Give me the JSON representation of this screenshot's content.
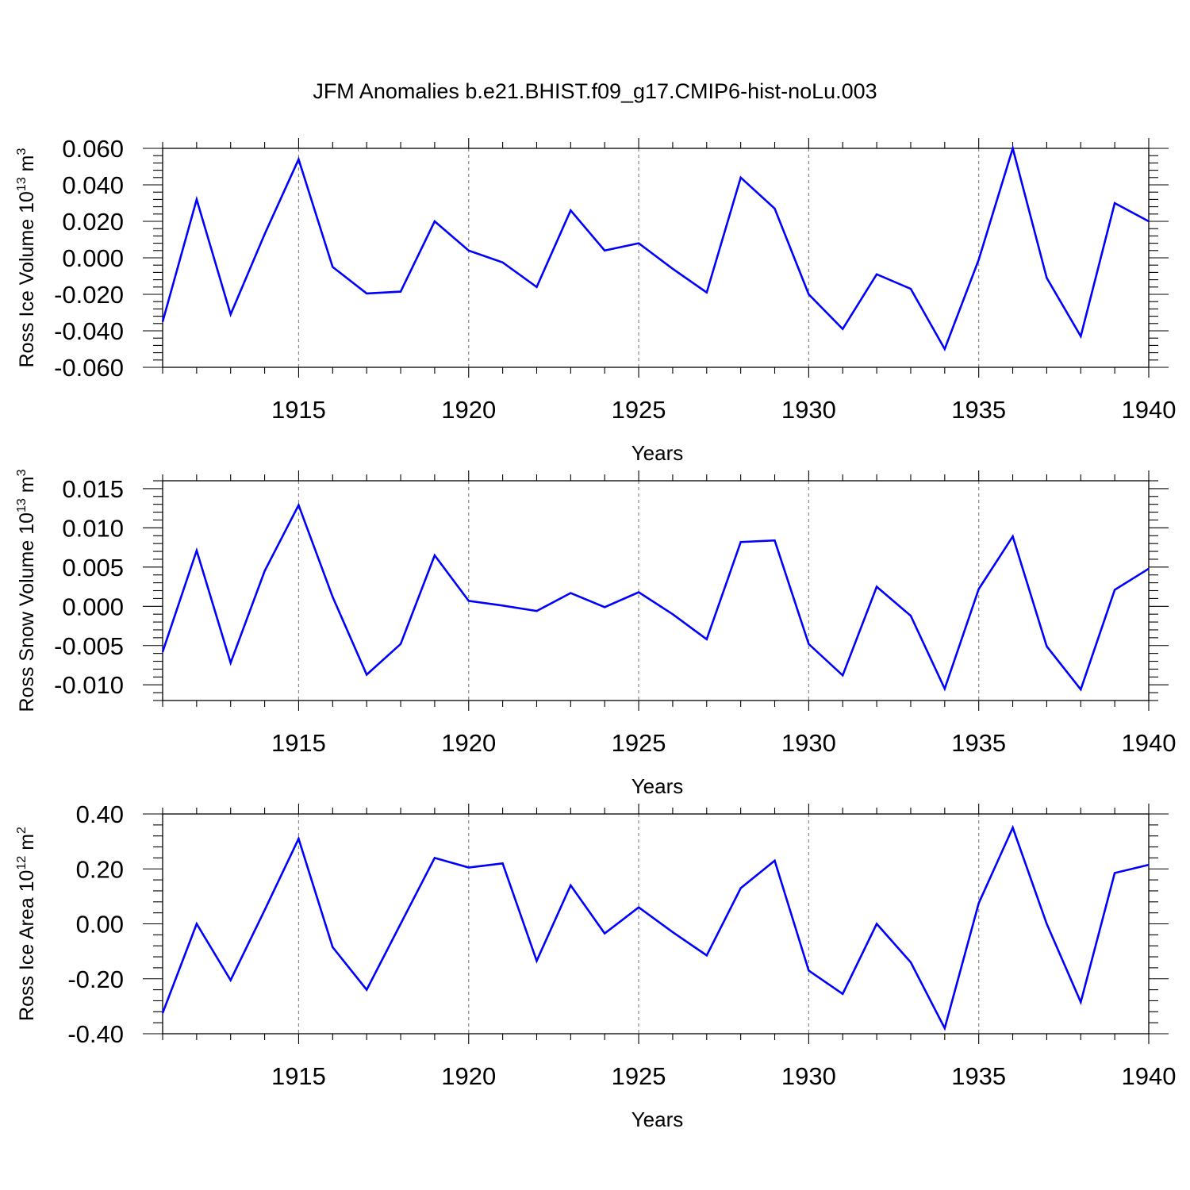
{
  "title": "JFM Anomalies b.e21.BHIST.f09_g17.CMIP6-hist-noLu.003",
  "line_color": "#0000ff",
  "chart_data": [
    {
      "type": "line",
      "ylabel": {
        "main": "Ross Ice Volume 10",
        "exp": "13",
        "unit": " m",
        "unit_exp": "3"
      },
      "xlabel": "Years",
      "xlim": [
        1911,
        1940
      ],
      "ylim": [
        -0.06,
        0.06
      ],
      "xticks": [
        "1915",
        "1920",
        "1925",
        "1930",
        "1935",
        "1940"
      ],
      "yticks": [
        "0.060",
        "0.040",
        "0.020",
        "0.000",
        "-0.020",
        "-0.040",
        "-0.060"
      ],
      "grid": "vertical dashed at labeled years",
      "x": [
        1911,
        1912,
        1913,
        1914,
        1915,
        1916,
        1917,
        1918,
        1919,
        1920,
        1921,
        1922,
        1923,
        1924,
        1925,
        1926,
        1927,
        1928,
        1929,
        1930,
        1931,
        1932,
        1933,
        1934,
        1935,
        1936,
        1937,
        1938,
        1939,
        1940
      ],
      "values": [
        -0.035,
        0.032,
        -0.031,
        0.013,
        0.054,
        -0.005,
        -0.0195,
        -0.0185,
        0.02,
        0.004,
        -0.0025,
        -0.016,
        0.026,
        0.004,
        0.008,
        -0.006,
        -0.019,
        0.044,
        0.027,
        -0.02,
        -0.039,
        -0.009,
        -0.017,
        -0.05,
        -0.001,
        0.06,
        -0.011,
        -0.043,
        0.03,
        0.02
      ]
    },
    {
      "type": "line",
      "ylabel": {
        "main": "Ross Snow Volume 10",
        "exp": "13",
        "unit": " m",
        "unit_exp": "3"
      },
      "xlabel": "Years",
      "xlim": [
        1911,
        1940
      ],
      "ylim": [
        -0.012,
        0.016
      ],
      "xticks": [
        "1915",
        "1920",
        "1925",
        "1930",
        "1935",
        "1940"
      ],
      "yticks": [
        "0.015",
        "0.010",
        "0.005",
        "0.000",
        "-0.005",
        "-0.010"
      ],
      "grid": "vertical dashed at labeled years",
      "x": [
        1911,
        1912,
        1913,
        1914,
        1915,
        1916,
        1917,
        1918,
        1919,
        1920,
        1921,
        1922,
        1923,
        1924,
        1925,
        1926,
        1927,
        1928,
        1929,
        1930,
        1931,
        1932,
        1933,
        1934,
        1935,
        1936,
        1937,
        1938,
        1939,
        1940
      ],
      "values": [
        -0.0058,
        0.0071,
        -0.0072,
        0.0045,
        0.0129,
        0.0012,
        -0.0087,
        -0.0048,
        0.0065,
        0.0007,
        0.0001,
        -0.0006,
        0.0017,
        -0.0001,
        0.0018,
        -0.001,
        -0.0042,
        0.0082,
        0.0084,
        -0.0048,
        -0.0088,
        0.0025,
        -0.0012,
        -0.0105,
        0.0022,
        0.0089,
        -0.0051,
        -0.0106,
        0.0021,
        0.0048
      ]
    },
    {
      "type": "line",
      "ylabel": {
        "main": "Ross Ice Area 10",
        "exp": "12",
        "unit": " m",
        "unit_exp": "2"
      },
      "xlabel": "Years",
      "xlim": [
        1911,
        1940
      ],
      "ylim": [
        -0.4,
        0.4
      ],
      "xticks": [
        "1915",
        "1920",
        "1925",
        "1930",
        "1935",
        "1940"
      ],
      "yticks": [
        "0.40",
        "0.20",
        "0.00",
        "-0.20",
        "-0.40"
      ],
      "grid": "vertical dashed at labeled years",
      "x": [
        1911,
        1912,
        1913,
        1914,
        1915,
        1916,
        1917,
        1918,
        1919,
        1920,
        1921,
        1922,
        1923,
        1924,
        1925,
        1926,
        1927,
        1928,
        1929,
        1930,
        1931,
        1932,
        1933,
        1934,
        1935,
        1936,
        1937,
        1938,
        1939,
        1940
      ],
      "values": [
        -0.325,
        0.0,
        -0.205,
        0.05,
        0.31,
        -0.085,
        -0.24,
        0.0,
        0.24,
        0.205,
        0.22,
        -0.135,
        0.14,
        -0.035,
        0.06,
        -0.03,
        -0.115,
        0.13,
        0.23,
        -0.17,
        -0.255,
        0.0,
        -0.14,
        -0.38,
        0.075,
        0.35,
        0.0,
        -0.285,
        0.185,
        0.215
      ]
    }
  ]
}
